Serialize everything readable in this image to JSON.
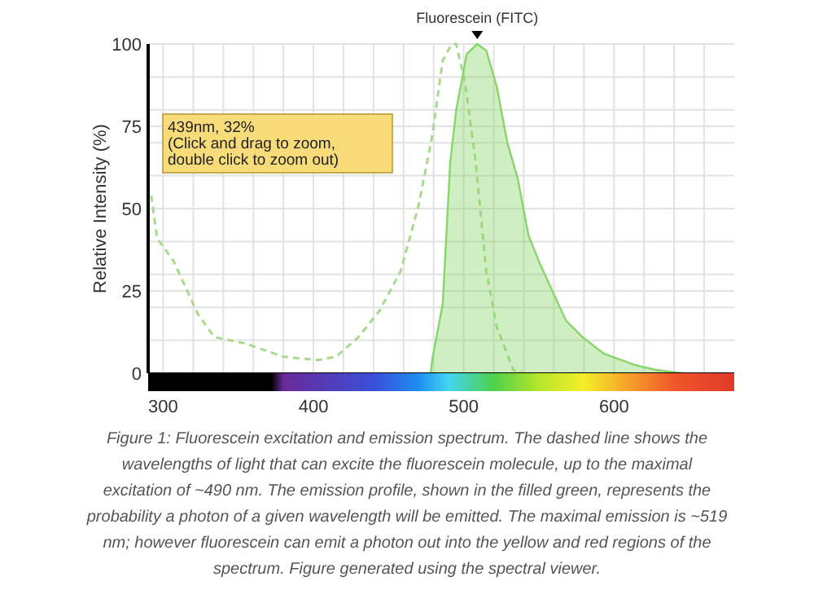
{
  "chart_data": {
    "type": "line",
    "title": "Fluorescein (FITC)",
    "ylabel": "Relative Intensity (%)",
    "xlim": [
      290,
      680
    ],
    "ylim": [
      0,
      100
    ],
    "xticks": [
      300,
      {
        "value": 320,
        "label": null
      },
      {
        "value": 340,
        "label": null
      },
      {
        "value": 360,
        "label": null
      },
      {
        "value": 380,
        "label": null
      },
      400,
      {
        "value": 420,
        "label": null
      },
      {
        "value": 440,
        "label": null
      },
      {
        "value": 460,
        "label": null
      },
      {
        "value": 480,
        "label": null
      },
      500,
      {
        "value": 520,
        "label": null
      },
      {
        "value": 540,
        "label": null
      },
      {
        "value": 560,
        "label": null
      },
      {
        "value": 580,
        "label": null
      },
      600,
      {
        "value": 620,
        "label": null
      },
      {
        "value": 640,
        "label": null
      },
      {
        "value": 660,
        "label": null
      }
    ],
    "yticks": [
      0,
      {
        "value": 10,
        "label": null
      },
      {
        "value": 20,
        "label": null
      },
      25,
      {
        "value": 30,
        "label": null
      },
      {
        "value": 40,
        "label": null
      },
      50,
      {
        "value": 60,
        "label": null
      },
      {
        "value": 70,
        "label": null
      },
      75,
      {
        "value": 80,
        "label": null
      },
      {
        "value": 90,
        "label": null
      },
      100
    ],
    "grid": true,
    "series": [
      {
        "type": "line",
        "line_style": "dashed",
        "color": "#a9d98c",
        "x": [
          292,
          296,
          307,
          314,
          323,
          334,
          355,
          380,
          403,
          415,
          430,
          444,
          458,
          470,
          479,
          486,
          492,
          495,
          501,
          508,
          515,
          522,
          533,
          540
        ],
        "values": [
          54,
          41,
          34,
          27,
          18,
          11,
          9,
          5,
          4,
          5,
          11,
          19,
          31,
          51,
          72,
          95,
          100,
          100,
          88,
          64,
          31,
          14,
          1,
          0
        ]
      },
      {
        "type": "area",
        "color": "#86d66a",
        "x": [
          478,
          479,
          486,
          491,
          495,
          502,
          509,
          515,
          522,
          529,
          536,
          543,
          550,
          557,
          568,
          579,
          593,
          614,
          628,
          646
        ],
        "values": [
          0,
          4,
          21,
          64,
          80,
          97,
          100,
          98,
          87,
          70,
          59,
          42,
          34,
          27,
          16,
          11,
          6,
          2.5,
          1,
          0
        ]
      }
    ],
    "annotations": [
      "439nm, 32%\n(Click and drag to zoom,\ndouble click to zoom out)",
      "Figure 1: Fluorescein excitation and emission spectrum. The dashed line shows the wavelengths of light that can excite the fluorescein molecule, up to the maximal excitation of ~490 nm. The emission profile, shown in the filled green, represents the probability a photon of a given wavelength will be emitted. The maximal emission is ~519 nm; however fluorescein can emit a photon out into the yellow and red regions of the spectrum. Figure generated using the spectral viewer."
    ]
  }
}
